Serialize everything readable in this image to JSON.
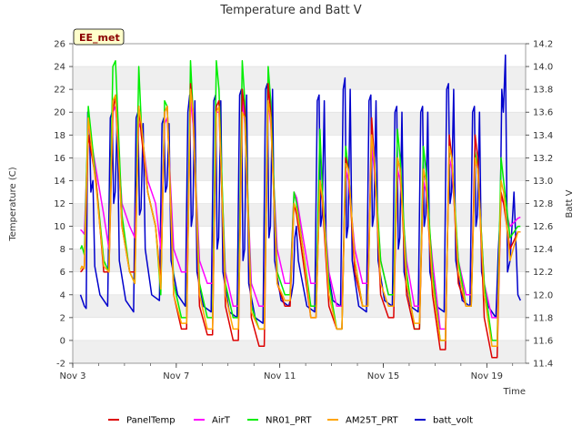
{
  "chart_data": {
    "type": "line",
    "title": "Temperature and Batt V",
    "station_label": "EE_met",
    "xlabel": "Time",
    "ylabel": "Temperature (C)",
    "y2label": "Batt V",
    "xlim": [
      3,
      20.5
    ],
    "ylim": [
      -2,
      26
    ],
    "y2lim": [
      11.4,
      14.2
    ],
    "x_ticks": [
      3,
      7,
      11,
      15,
      19
    ],
    "x_tick_labels": [
      "Nov 3",
      "Nov 7",
      "Nov 11",
      "Nov 15",
      "Nov 19"
    ],
    "y_ticks": [
      -2,
      0,
      2,
      4,
      6,
      8,
      10,
      12,
      14,
      16,
      18,
      20,
      22,
      24,
      26
    ],
    "y2_ticks": [
      11.4,
      11.6,
      11.8,
      12.0,
      12.2,
      12.4,
      12.6,
      12.8,
      13.0,
      13.2,
      13.4,
      13.6,
      13.8,
      14.0,
      14.2
    ],
    "grid": "horizontal bands",
    "legend_position": "bottom",
    "colors": {
      "PanelTemp": "#dd0000",
      "AirT": "#ff00ff",
      "NR01_PRT": "#00ee00",
      "AM25T_PRT": "#ffa500",
      "batt_volt": "#0000cc"
    },
    "days": [
      3.5,
      4.5,
      5.5,
      6.5,
      7.5,
      8.5,
      9.5,
      10.5,
      11.5,
      12.5,
      13.5,
      14.5,
      15.5,
      16.5,
      17.5,
      18.5,
      19.5
    ],
    "series": [
      {
        "name": "PanelTemp",
        "axis": "left",
        "x": [
          3.3,
          3.35,
          3.45,
          3.6,
          3.9,
          4.2,
          4.4,
          4.55,
          4.65,
          4.9,
          5.2,
          5.4,
          5.55,
          5.65,
          5.9,
          6.2,
          6.4,
          6.55,
          6.65,
          6.9,
          7.2,
          7.4,
          7.55,
          7.65,
          7.9,
          8.2,
          8.4,
          8.55,
          8.65,
          8.9,
          9.2,
          9.4,
          9.55,
          9.65,
          9.9,
          10.2,
          10.4,
          10.55,
          10.65,
          10.9,
          11.2,
          11.4,
          11.55,
          11.65,
          11.9,
          12.2,
          12.4,
          12.55,
          12.65,
          12.9,
          13.2,
          13.4,
          13.55,
          13.65,
          13.9,
          14.2,
          14.4,
          14.55,
          14.65,
          14.9,
          15.2,
          15.4,
          15.55,
          15.65,
          15.9,
          16.2,
          16.4,
          16.55,
          16.65,
          16.9,
          17.2,
          17.4,
          17.55,
          17.65,
          17.9,
          18.2,
          18.4,
          18.55,
          18.65,
          18.9,
          19.2,
          19.4,
          19.55,
          19.65,
          19.9,
          20.2,
          20.3
        ],
        "y": [
          6,
          6.1,
          6.5,
          18,
          14,
          6,
          6,
          20,
          21.5,
          10,
          6,
          6,
          20.5,
          18,
          13,
          10,
          5,
          20,
          20.5,
          4,
          1,
          1,
          22.5,
          20,
          3,
          0.5,
          0.5,
          20.5,
          21,
          3,
          0,
          0,
          22,
          20,
          2,
          -0.5,
          -0.5,
          22.5,
          20,
          5,
          3,
          3,
          12,
          11,
          7,
          2,
          2,
          14,
          12,
          3,
          1,
          1,
          16,
          15,
          6,
          3,
          3,
          19.5,
          16,
          4,
          2,
          2,
          16,
          15,
          4,
          1,
          1,
          15,
          14,
          4,
          -0.8,
          -0.8,
          18,
          16,
          5,
          3,
          3,
          18,
          16,
          2,
          -1.5,
          -1.5,
          13,
          12,
          8,
          9.5,
          9.5
        ]
      },
      {
        "name": "AirT",
        "axis": "left",
        "x": [
          3.3,
          3.35,
          3.45,
          3.6,
          3.9,
          4.2,
          4.4,
          4.55,
          4.65,
          4.9,
          5.2,
          5.4,
          5.55,
          5.65,
          5.9,
          6.2,
          6.4,
          6.55,
          6.65,
          6.9,
          7.2,
          7.4,
          7.55,
          7.65,
          7.9,
          8.2,
          8.4,
          8.55,
          8.65,
          8.9,
          9.2,
          9.4,
          9.55,
          9.65,
          9.9,
          10.2,
          10.4,
          10.55,
          10.65,
          10.9,
          11.2,
          11.4,
          11.55,
          11.65,
          11.9,
          12.2,
          12.4,
          12.55,
          12.65,
          12.9,
          13.2,
          13.4,
          13.55,
          13.65,
          13.9,
          14.2,
          14.4,
          14.55,
          14.65,
          14.9,
          15.2,
          15.4,
          15.55,
          15.65,
          15.9,
          16.2,
          16.4,
          16.55,
          16.65,
          16.9,
          17.2,
          17.4,
          17.55,
          17.65,
          17.9,
          18.2,
          18.4,
          18.55,
          18.65,
          18.9,
          19.2,
          19.4,
          19.55,
          19.65,
          19.9,
          20.2,
          20.3
        ],
        "y": [
          9.7,
          9.6,
          9.3,
          19,
          15,
          11,
          8,
          20,
          20.5,
          12,
          10,
          9,
          19,
          18.5,
          14,
          12,
          8,
          19,
          19.5,
          8,
          6,
          6,
          21,
          19,
          7,
          5,
          5,
          20,
          20,
          6,
          3,
          3,
          21,
          19,
          5,
          3,
          3,
          21,
          19,
          8,
          5,
          5,
          13,
          12.5,
          9,
          5,
          5,
          14,
          13,
          6,
          3,
          3,
          15,
          14,
          8,
          5,
          5,
          17,
          15,
          7,
          4,
          4,
          15,
          14,
          7,
          3,
          3,
          14,
          13,
          7,
          1,
          1,
          16,
          15,
          7,
          4,
          4,
          16,
          15,
          5,
          2,
          2,
          12.5,
          12,
          10,
          10.7,
          10.8
        ]
      },
      {
        "name": "NR01_PRT",
        "axis": "left",
        "x": [
          3.3,
          3.35,
          3.45,
          3.6,
          3.9,
          4.2,
          4.4,
          4.55,
          4.65,
          4.9,
          5.2,
          5.4,
          5.55,
          5.65,
          5.9,
          6.2,
          6.4,
          6.55,
          6.65,
          6.9,
          7.2,
          7.4,
          7.55,
          7.65,
          7.9,
          8.2,
          8.4,
          8.55,
          8.65,
          8.9,
          9.2,
          9.4,
          9.55,
          9.65,
          9.9,
          10.2,
          10.4,
          10.55,
          10.65,
          10.9,
          11.2,
          11.4,
          11.55,
          11.65,
          11.9,
          12.2,
          12.4,
          12.55,
          12.65,
          12.9,
          13.2,
          13.4,
          13.55,
          13.65,
          13.9,
          14.2,
          14.4,
          14.55,
          14.65,
          14.9,
          15.2,
          15.4,
          15.55,
          15.65,
          15.9,
          16.2,
          16.4,
          16.55,
          16.65,
          16.9,
          17.2,
          17.4,
          17.55,
          17.65,
          17.9,
          18.2,
          18.4,
          18.55,
          18.65,
          18.9,
          19.2,
          19.4,
          19.55,
          19.65,
          19.9,
          20.2,
          20.3
        ],
        "y": [
          8,
          8.3,
          7.5,
          20.5,
          14,
          7,
          6,
          24,
          24.5,
          11,
          6,
          5,
          24,
          19,
          13,
          10,
          4,
          21,
          20.5,
          5,
          2,
          2,
          24.5,
          20,
          5,
          2,
          2,
          24.5,
          22,
          5,
          2,
          2,
          24.5,
          21,
          3,
          1,
          1,
          24,
          21,
          6,
          4,
          4,
          13,
          12,
          8,
          3,
          3,
          18.5,
          13,
          5,
          1,
          1,
          17,
          15,
          7,
          3,
          3,
          18,
          16,
          7,
          4,
          4,
          18.5,
          16,
          6,
          1,
          1,
          17,
          15,
          6,
          0,
          0,
          17,
          16,
          7,
          3,
          3,
          16.5,
          15,
          5,
          0,
          0,
          16,
          14,
          9,
          10,
          10
        ]
      },
      {
        "name": "AM25T_PRT",
        "axis": "left",
        "x": [
          3.3,
          3.35,
          3.45,
          3.6,
          3.9,
          4.2,
          4.4,
          4.55,
          4.65,
          4.9,
          5.2,
          5.4,
          5.55,
          5.65,
          5.9,
          6.2,
          6.4,
          6.55,
          6.65,
          6.9,
          7.2,
          7.4,
          7.55,
          7.65,
          7.9,
          8.2,
          8.4,
          8.55,
          8.65,
          8.9,
          9.2,
          9.4,
          9.55,
          9.65,
          9.9,
          10.2,
          10.4,
          10.55,
          10.65,
          10.9,
          11.2,
          11.4,
          11.55,
          11.65,
          11.9,
          12.2,
          12.4,
          12.55,
          12.65,
          12.9,
          13.2,
          13.4,
          13.55,
          13.65,
          13.9,
          14.2,
          14.4,
          14.55,
          14.65,
          14.9,
          15.2,
          15.4,
          15.55,
          15.65,
          15.9,
          16.2,
          16.4,
          16.55,
          16.65,
          16.9,
          17.2,
          17.4,
          17.55,
          17.65,
          17.9,
          18.2,
          18.4,
          18.55,
          18.65,
          18.9,
          19.2,
          19.4,
          19.55,
          19.65,
          19.9,
          20.2,
          20.3
        ],
        "y": [
          6.2,
          6.5,
          6.3,
          19.5,
          13.5,
          6.5,
          6,
          21,
          21.5,
          10,
          6,
          5,
          20.5,
          19,
          13,
          10,
          4.5,
          20,
          20.5,
          4,
          1.5,
          1.5,
          22,
          20,
          4,
          1,
          1,
          20,
          20.5,
          4,
          1,
          1,
          20,
          19.5,
          2.5,
          1,
          1,
          21,
          19.5,
          5,
          3.5,
          3.5,
          12,
          11.5,
          8,
          2,
          2,
          14,
          12.5,
          4,
          1,
          1,
          15.5,
          15,
          7,
          3,
          3,
          18,
          16,
          5,
          3,
          3,
          16,
          15,
          5,
          1.5,
          1.5,
          15,
          14,
          5,
          0,
          0,
          17,
          16,
          6,
          3,
          3,
          16,
          15,
          4,
          -0.5,
          -0.5,
          14,
          13,
          7,
          9.5,
          9.5
        ]
      },
      {
        "name": "batt_volt",
        "axis": "right",
        "x": [
          3.3,
          3.45,
          3.52,
          3.58,
          3.64,
          3.7,
          3.78,
          3.85,
          4.05,
          4.35,
          4.45,
          4.52,
          4.58,
          4.64,
          4.72,
          4.8,
          5.05,
          5.35,
          5.45,
          5.52,
          5.58,
          5.64,
          5.72,
          5.8,
          6.05,
          6.35,
          6.45,
          6.52,
          6.58,
          6.64,
          6.72,
          6.8,
          7.05,
          7.35,
          7.45,
          7.52,
          7.58,
          7.64,
          7.72,
          7.8,
          8.05,
          8.35,
          8.45,
          8.52,
          8.58,
          8.64,
          8.72,
          8.8,
          9.05,
          9.35,
          9.45,
          9.52,
          9.58,
          9.64,
          9.72,
          9.8,
          10.05,
          10.35,
          10.45,
          10.52,
          10.58,
          10.64,
          10.72,
          10.8,
          11.05,
          11.35,
          11.45,
          11.52,
          11.58,
          11.64,
          11.72,
          11.8,
          12.05,
          12.35,
          12.45,
          12.52,
          12.58,
          12.64,
          12.72,
          12.8,
          13.05,
          13.35,
          13.45,
          13.52,
          13.58,
          13.64,
          13.72,
          13.8,
          14.05,
          14.35,
          14.45,
          14.52,
          14.58,
          14.64,
          14.72,
          14.8,
          15.05,
          15.35,
          15.45,
          15.52,
          15.58,
          15.64,
          15.72,
          15.8,
          16.05,
          16.35,
          16.45,
          16.52,
          16.58,
          16.64,
          16.72,
          16.8,
          17.05,
          17.35,
          17.45,
          17.52,
          17.58,
          17.64,
          17.72,
          17.8,
          18.05,
          18.35,
          18.45,
          18.52,
          18.58,
          18.64,
          18.72,
          18.8,
          19.05,
          19.35,
          19.45,
          19.52,
          19.58,
          19.64,
          19.72,
          19.8,
          19.9,
          20.05,
          20.2,
          20.3
        ],
        "y": [
          12.0,
          11.9,
          11.88,
          13.6,
          13.55,
          12.9,
          13.0,
          12.25,
          12.0,
          11.9,
          13.55,
          13.6,
          12.8,
          12.9,
          13.55,
          12.3,
          11.95,
          11.85,
          13.55,
          13.6,
          12.7,
          12.75,
          13.5,
          12.4,
          12.0,
          11.95,
          13.5,
          13.55,
          12.9,
          12.95,
          13.5,
          12.3,
          12.0,
          11.9,
          13.6,
          13.75,
          12.6,
          12.7,
          13.7,
          12.2,
          11.9,
          11.85,
          13.7,
          13.75,
          12.4,
          12.5,
          13.7,
          12.2,
          11.85,
          11.8,
          13.75,
          13.8,
          12.3,
          12.4,
          13.75,
          12.1,
          11.8,
          11.75,
          13.8,
          13.85,
          12.5,
          12.6,
          13.8,
          12.3,
          11.95,
          11.9,
          12.0,
          12.1,
          12.5,
          12.6,
          12.3,
          12.2,
          11.9,
          11.85,
          13.7,
          13.75,
          12.6,
          12.7,
          13.7,
          12.3,
          11.95,
          11.9,
          13.8,
          13.9,
          12.5,
          12.6,
          13.8,
          12.3,
          11.9,
          11.85,
          13.7,
          13.75,
          12.6,
          12.7,
          13.7,
          12.3,
          11.95,
          11.9,
          13.6,
          13.65,
          12.4,
          12.5,
          13.6,
          12.2,
          11.9,
          11.85,
          13.6,
          13.65,
          12.6,
          12.7,
          13.6,
          12.2,
          11.9,
          11.85,
          13.8,
          13.85,
          12.8,
          12.9,
          13.8,
          12.3,
          11.95,
          11.9,
          13.6,
          13.65,
          12.6,
          12.7,
          13.6,
          12.2,
          11.9,
          11.8,
          12.4,
          12.7,
          13.8,
          13.6,
          14.1,
          12.2,
          12.3,
          12.9,
          12.0,
          11.95
        ]
      }
    ]
  }
}
